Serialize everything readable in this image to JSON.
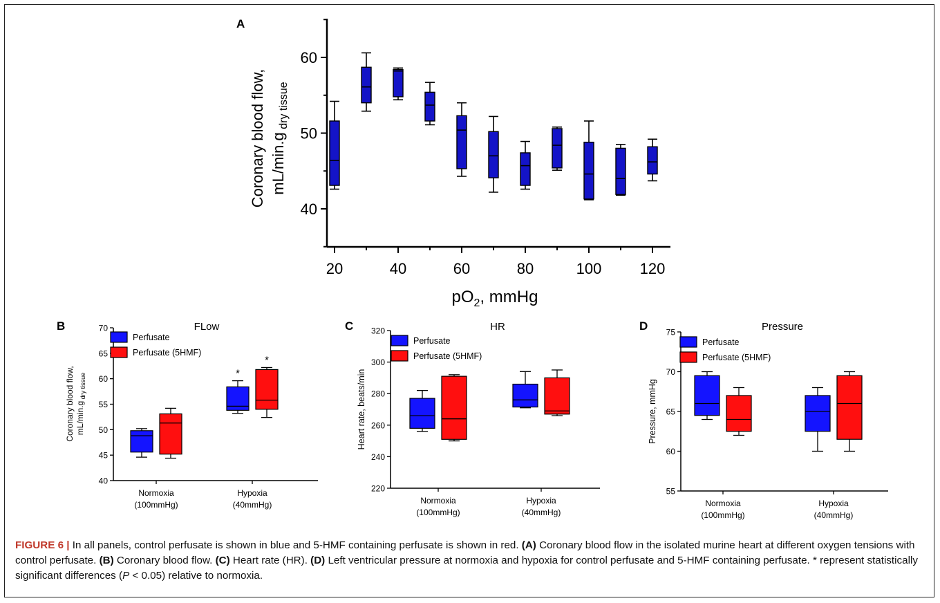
{
  "chart_data": [
    {
      "panel": "A",
      "type": "boxplot",
      "title": "",
      "xlabel": "pO",
      "xlabel_sub": "2",
      "xlabel_tail": ", mmHg",
      "ylabel_line1": "Coronary blood flow,",
      "ylabel_line2": "mL/min.g",
      "ylabel_sub": "dry tissue",
      "xlim": [
        18,
        125
      ],
      "ylim": [
        35,
        65
      ],
      "x_ticks": [
        20,
        40,
        60,
        80,
        100,
        120
      ],
      "y_ticks": [
        40,
        50,
        60
      ],
      "grid": false,
      "box_color": "#1414c8",
      "series": [
        {
          "boxes": [
            {
              "x": 20,
              "min": 42.6,
              "q1": 43.1,
              "median": 46.4,
              "q3": 51.6,
              "max": 54.2
            },
            {
              "x": 30,
              "min": 52.9,
              "q1": 54.0,
              "median": 56.1,
              "q3": 58.7,
              "max": 60.6
            },
            {
              "x": 40,
              "min": 54.4,
              "q1": 54.8,
              "median": 58.2,
              "q3": 58.4,
              "max": 58.6
            },
            {
              "x": 50,
              "min": 51.1,
              "q1": 51.6,
              "median": 53.7,
              "q3": 55.4,
              "max": 56.7
            },
            {
              "x": 60,
              "min": 44.3,
              "q1": 45.3,
              "median": 50.4,
              "q3": 52.3,
              "max": 54.0
            },
            {
              "x": 70,
              "min": 42.2,
              "q1": 44.1,
              "median": 47.0,
              "q3": 50.2,
              "max": 52.2
            },
            {
              "x": 80,
              "min": 42.6,
              "q1": 43.1,
              "median": 45.7,
              "q3": 47.4,
              "max": 48.9
            },
            {
              "x": 90,
              "min": 45.1,
              "q1": 45.4,
              "median": 48.4,
              "q3": 50.6,
              "max": 50.8
            },
            {
              "x": 100,
              "min": 41.2,
              "q1": 41.3,
              "median": 44.6,
              "q3": 48.8,
              "max": 51.6
            },
            {
              "x": 110,
              "min": 41.8,
              "q1": 41.9,
              "median": 44.0,
              "q3": 48.0,
              "max": 48.5
            },
            {
              "x": 120,
              "min": 43.7,
              "q1": 44.6,
              "median": 46.2,
              "q3": 48.2,
              "max": 49.2
            }
          ]
        }
      ]
    },
    {
      "panel": "B",
      "type": "boxplot",
      "title": "FLow",
      "categories": [
        [
          "Normoxia",
          "(100mmHg)"
        ],
        [
          "Hypoxia",
          "(40mmHg)"
        ]
      ],
      "ylabel_line1": "Coronary blood flow,",
      "ylabel_line2": "mL/min.g",
      "ylabel_sub": "dry tissue",
      "ylim": [
        40,
        70
      ],
      "y_ticks": [
        40,
        45,
        50,
        55,
        60,
        65,
        70
      ],
      "legend_position": "top-left",
      "series": [
        {
          "name": "Perfusate",
          "color": "#1414ff",
          "boxes": [
            {
              "min": 44.6,
              "q1": 45.6,
              "median": 48.8,
              "q3": 49.8,
              "max": 50.2
            },
            {
              "min": 53.2,
              "q1": 53.8,
              "median": 54.6,
              "q3": 58.4,
              "max": 59.6
            }
          ]
        },
        {
          "name": "Perfusate (5HMF)",
          "color": "#ff0f0f",
          "boxes": [
            {
              "min": 44.4,
              "q1": 45.2,
              "median": 51.3,
              "q3": 53.1,
              "max": 54.2
            },
            {
              "min": 52.4,
              "q1": 54.0,
              "median": 55.8,
              "q3": 61.8,
              "max": 62.2
            }
          ]
        }
      ],
      "annotations": [
        {
          "text": "*",
          "category": 1,
          "series": 0
        },
        {
          "text": "*",
          "category": 1,
          "series": 1
        }
      ]
    },
    {
      "panel": "C",
      "type": "boxplot",
      "title": "HR",
      "categories": [
        [
          "Normoxia",
          "(100mmHg)"
        ],
        [
          "Hypoxia",
          "(40mmHg)"
        ]
      ],
      "ylabel_line1": "Heart rate, beats/min",
      "ylim": [
        220,
        320
      ],
      "y_ticks": [
        220,
        240,
        260,
        280,
        300,
        320
      ],
      "legend_position": "top-left",
      "series": [
        {
          "name": "Perfusate",
          "color": "#1414ff",
          "boxes": [
            {
              "min": 256,
              "q1": 258,
              "median": 266,
              "q3": 277,
              "max": 282
            },
            {
              "min": 271,
              "q1": 271.5,
              "median": 276,
              "q3": 286,
              "max": 294
            }
          ]
        },
        {
          "name": "Perfusate (5HMF)",
          "color": "#ff0f0f",
          "boxes": [
            {
              "min": 250,
              "q1": 251,
              "median": 264,
              "q3": 291,
              "max": 292
            },
            {
              "min": 266,
              "q1": 267,
              "median": 269,
              "q3": 290,
              "max": 295
            }
          ]
        }
      ]
    },
    {
      "panel": "D",
      "type": "boxplot",
      "title": "Pressure",
      "categories": [
        [
          "Normoxia",
          "(100mmHg)"
        ],
        [
          "Hypoxia",
          "(40mmHg)"
        ]
      ],
      "ylabel_line1": "Pressure, mmHg",
      "ylim": [
        55,
        75
      ],
      "y_ticks": [
        55,
        60,
        65,
        70,
        75
      ],
      "legend_position": "top-left",
      "series": [
        {
          "name": "Perfusate",
          "color": "#1414ff",
          "boxes": [
            {
              "min": 64,
              "q1": 64.5,
              "median": 66,
              "q3": 69.5,
              "max": 70
            },
            {
              "min": 60,
              "q1": 62.5,
              "median": 65,
              "q3": 67,
              "max": 68
            }
          ]
        },
        {
          "name": "Perfusate (5HMF)",
          "color": "#ff0f0f",
          "boxes": [
            {
              "min": 62,
              "q1": 62.5,
              "median": 64,
              "q3": 67,
              "max": 68
            },
            {
              "min": 60,
              "q1": 61.5,
              "median": 66,
              "q3": 69.5,
              "max": 70
            }
          ]
        }
      ]
    }
  ],
  "caption": {
    "lead": "FIGURE 6 |",
    "parts": [
      {
        "t": " In all panels, control perfusate is shown in blue and 5-HMF containing perfusate is shown in red. "
      },
      {
        "t": "(A)",
        "b": true
      },
      {
        "t": " Coronary blood flow in the isolated murine heart at different oxygen tensions with control perfusate. "
      },
      {
        "t": "(B)",
        "b": true
      },
      {
        "t": " Coronary blood flow. "
      },
      {
        "t": "(C)",
        "b": true
      },
      {
        "t": " Heart rate (HR). "
      },
      {
        "t": "(D)",
        "b": true
      },
      {
        "t": " Left ventricular pressure at normoxia and hypoxia for control perfusate and 5-HMF containing perfusate. * represent statistically significant differences ("
      },
      {
        "t": "P",
        "i": true
      },
      {
        "t": " < 0.05) relative to normoxia."
      }
    ]
  }
}
